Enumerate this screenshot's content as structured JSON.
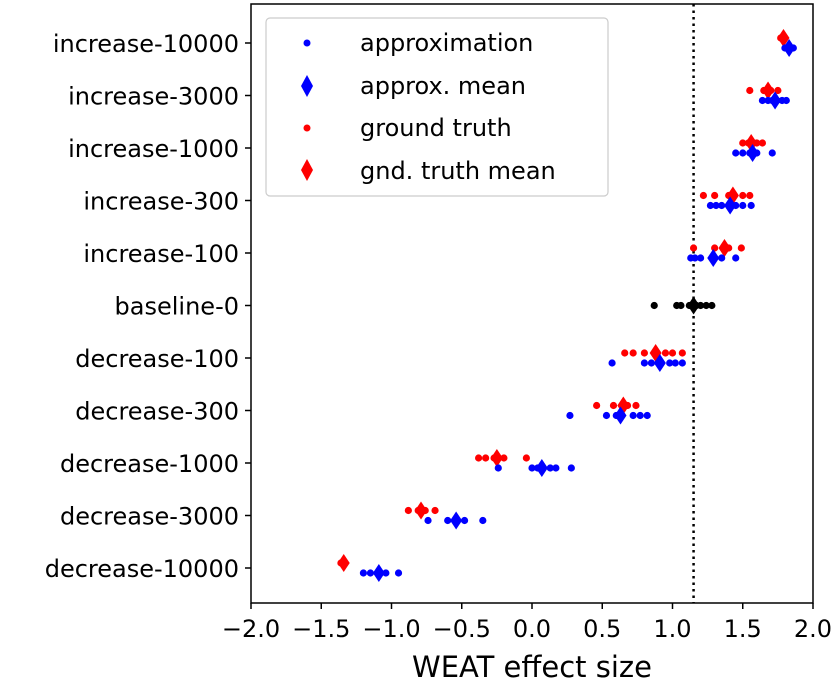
{
  "chart_data": {
    "type": "scatter",
    "title": "",
    "xlabel": "WEAT effect size",
    "ylabel": "",
    "xlim": [
      -2.0,
      2.0
    ],
    "xticks": [
      "−2.0",
      "−1.5",
      "−1.0",
      "−0.5",
      "0.0",
      "0.5",
      "1.0",
      "1.5",
      "2.0"
    ],
    "xtick_values": [
      -2.0,
      -1.5,
      -1.0,
      -0.5,
      0.0,
      0.5,
      1.0,
      1.5,
      2.0
    ],
    "reference_line": {
      "x": 1.15,
      "style": "dotted",
      "color": "#000000"
    },
    "legend": {
      "placement": "top-left",
      "entries": [
        {
          "label": "approximation",
          "marker": "dot",
          "color": "#0000ff"
        },
        {
          "label": "approx. mean",
          "marker": "diamond",
          "color": "#0000ff"
        },
        {
          "label": "ground truth",
          "marker": "dot",
          "color": "#ff0000"
        },
        {
          "label": "gnd. truth mean",
          "marker": "diamond",
          "color": "#ff0000"
        }
      ]
    },
    "categories": [
      "increase-10000",
      "increase-3000",
      "increase-1000",
      "increase-300",
      "increase-100",
      "baseline-0",
      "decrease-100",
      "decrease-300",
      "decrease-1000",
      "decrease-3000",
      "decrease-10000"
    ],
    "rows": [
      {
        "label": "increase-10000",
        "approx": [
          1.8,
          1.82,
          1.84,
          1.86,
          1.83
        ],
        "approx_mean": 1.83,
        "truth": [
          1.77,
          1.79,
          1.8,
          1.78
        ],
        "truth_mean": 1.79
      },
      {
        "label": "increase-3000",
        "approx": [
          1.64,
          1.68,
          1.71,
          1.74,
          1.78,
          1.81
        ],
        "approx_mean": 1.73,
        "truth": [
          1.55,
          1.65,
          1.7,
          1.75
        ],
        "truth_mean": 1.68
      },
      {
        "label": "increase-1000",
        "approx": [
          1.45,
          1.5,
          1.55,
          1.6,
          1.71
        ],
        "approx_mean": 1.57,
        "truth": [
          1.5,
          1.54,
          1.6,
          1.64
        ],
        "truth_mean": 1.56
      },
      {
        "label": "increase-300",
        "approx": [
          1.27,
          1.31,
          1.35,
          1.45,
          1.5,
          1.56
        ],
        "approx_mean": 1.41,
        "truth": [
          1.22,
          1.3,
          1.4,
          1.5,
          1.55
        ],
        "truth_mean": 1.43
      },
      {
        "label": "increase-100",
        "approx": [
          1.13,
          1.16,
          1.2,
          1.35,
          1.45
        ],
        "approx_mean": 1.29,
        "truth": [
          1.15,
          1.3,
          1.4,
          1.49
        ],
        "truth_mean": 1.37
      },
      {
        "label": "baseline-0",
        "baseline": [
          0.87,
          1.03,
          1.06,
          1.12,
          1.17,
          1.2,
          1.24,
          1.28
        ],
        "baseline_mean": 1.15,
        "color": "#000000"
      },
      {
        "label": "decrease-100",
        "approx": [
          0.57,
          0.8,
          0.85,
          0.98,
          1.02,
          1.07
        ],
        "approx_mean": 0.91,
        "truth": [
          0.66,
          0.72,
          0.8,
          0.95,
          1.0,
          1.07
        ],
        "truth_mean": 0.88
      },
      {
        "label": "decrease-300",
        "approx": [
          0.27,
          0.53,
          0.6,
          0.72,
          0.77,
          0.82
        ],
        "approx_mean": 0.63,
        "truth": [
          0.46,
          0.58,
          0.68,
          0.74
        ],
        "truth_mean": 0.65
      },
      {
        "label": "decrease-1000",
        "approx": [
          -0.24,
          0.0,
          0.04,
          0.13,
          0.17,
          0.28
        ],
        "approx_mean": 0.07,
        "truth": [
          -0.38,
          -0.33,
          -0.27,
          -0.2,
          -0.04
        ],
        "truth_mean": -0.25
      },
      {
        "label": "decrease-3000",
        "approx": [
          -0.74,
          -0.6,
          -0.55,
          -0.48,
          -0.35
        ],
        "approx_mean": -0.54,
        "truth": [
          -0.88,
          -0.81,
          -0.76,
          -0.69
        ],
        "truth_mean": -0.79
      },
      {
        "label": "decrease-10000",
        "approx": [
          -1.2,
          -1.15,
          -1.09,
          -1.04,
          -0.95
        ],
        "approx_mean": -1.09,
        "truth": [
          -1.36,
          -1.33
        ],
        "truth_mean": -1.34
      }
    ]
  }
}
